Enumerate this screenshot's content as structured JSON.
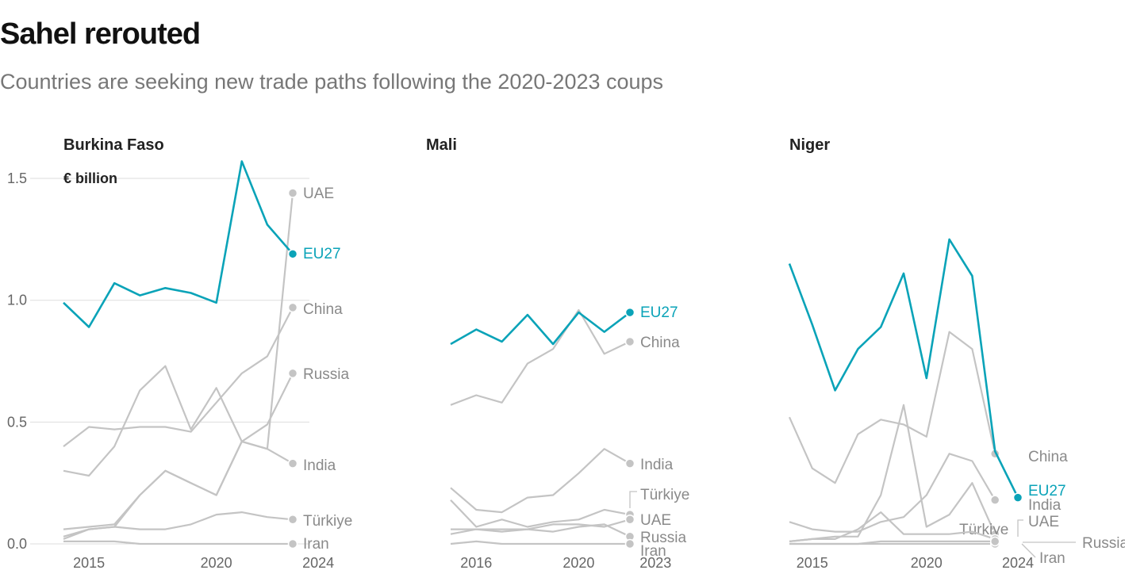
{
  "title": "Sahel rerouted",
  "subtitle": "Countries are seeking new trade paths following the 2020-2023 coups",
  "colors": {
    "highlight": "#0aa3b8",
    "other": "#c4c4c4",
    "grid": "#dddddd"
  },
  "chart_data": [
    {
      "type": "line",
      "title": "Burkina Faso",
      "unit": "€ billion",
      "x": [
        2014,
        2015,
        2016,
        2017,
        2018,
        2019,
        2020,
        2021,
        2022,
        2023,
        2024
      ],
      "ylim": [
        0,
        1.5
      ],
      "yticks": [
        0.0,
        0.5,
        1.0,
        1.5
      ],
      "ytick_labels": [
        "0.0",
        "0.5",
        "1.0",
        "1.5"
      ],
      "xticks": [
        2015,
        2020,
        2024
      ],
      "xtick_labels": [
        "2015",
        "2020",
        "2024"
      ],
      "series": [
        {
          "name": "EU27",
          "highlight": true,
          "values": [
            0.99,
            0.89,
            1.07,
            1.02,
            1.05,
            1.03,
            0.99,
            1.57,
            1.31,
            1.19,
            null
          ]
        },
        {
          "name": "UAE",
          "values": [
            0.02,
            0.06,
            0.07,
            0.2,
            0.3,
            0.25,
            0.2,
            0.42,
            0.39,
            1.44,
            null
          ]
        },
        {
          "name": "China",
          "values": [
            0.4,
            0.48,
            0.47,
            0.48,
            0.48,
            0.46,
            0.58,
            0.7,
            0.77,
            0.97,
            null
          ]
        },
        {
          "name": "Russia",
          "values": [
            0.06,
            0.07,
            0.08,
            0.2,
            0.3,
            0.25,
            0.2,
            0.42,
            0.49,
            0.7,
            null
          ]
        },
        {
          "name": "India",
          "values": [
            0.3,
            0.28,
            0.4,
            0.63,
            0.73,
            0.47,
            0.64,
            0.42,
            0.39,
            0.33,
            null
          ]
        },
        {
          "name": "Türkiye",
          "values": [
            0.03,
            0.06,
            0.07,
            0.06,
            0.06,
            0.08,
            0.12,
            0.13,
            0.11,
            0.1,
            null
          ]
        },
        {
          "name": "Iran",
          "values": [
            0.01,
            0.01,
            0.01,
            0.0,
            0.0,
            0.0,
            0.0,
            0.0,
            0.0,
            0.0,
            null
          ]
        }
      ]
    },
    {
      "type": "line",
      "title": "Mali",
      "x": [
        2015,
        2016,
        2017,
        2018,
        2019,
        2020,
        2021,
        2022,
        2023
      ],
      "ylim": [
        0,
        1.5
      ],
      "xticks": [
        2016,
        2020,
        2023
      ],
      "xtick_labels": [
        "2016",
        "2020",
        "2023"
      ],
      "series": [
        {
          "name": "EU27",
          "highlight": true,
          "values": [
            0.82,
            0.88,
            0.83,
            0.94,
            0.82,
            0.95,
            0.87,
            0.95,
            null
          ]
        },
        {
          "name": "China",
          "values": [
            0.57,
            0.61,
            0.58,
            0.74,
            0.8,
            0.96,
            0.78,
            0.83,
            null
          ]
        },
        {
          "name": "India",
          "values": [
            0.23,
            0.14,
            0.13,
            0.19,
            0.2,
            0.29,
            0.39,
            0.33,
            null
          ]
        },
        {
          "name": "Türkiye",
          "values": [
            0.18,
            0.07,
            0.1,
            0.07,
            0.09,
            0.1,
            0.14,
            0.12,
            null
          ]
        },
        {
          "name": "UAE",
          "values": [
            0.06,
            0.06,
            0.06,
            0.06,
            0.08,
            0.08,
            0.07,
            0.1,
            null
          ]
        },
        {
          "name": "Russia",
          "values": [
            0.04,
            0.06,
            0.05,
            0.06,
            0.05,
            0.07,
            0.08,
            0.03,
            null
          ]
        },
        {
          "name": "Iran",
          "values": [
            0.0,
            0.01,
            0.0,
            0.0,
            0.0,
            0.0,
            0.0,
            0.0,
            null
          ]
        }
      ]
    },
    {
      "type": "line",
      "title": "Niger",
      "x": [
        2014,
        2015,
        2016,
        2017,
        2018,
        2019,
        2020,
        2021,
        2022,
        2023,
        2024
      ],
      "ylim": [
        0,
        1.5
      ],
      "xticks": [
        2015,
        2020,
        2024
      ],
      "xtick_labels": [
        "2015",
        "2020",
        "2024"
      ],
      "series": [
        {
          "name": "EU27",
          "highlight": true,
          "values": [
            1.15,
            0.9,
            0.63,
            0.8,
            0.89,
            1.11,
            0.68,
            1.25,
            1.1,
            0.38,
            0.19
          ]
        },
        {
          "name": "China",
          "values": [
            0.52,
            0.31,
            0.25,
            0.45,
            0.51,
            0.49,
            0.44,
            0.87,
            0.8,
            0.37,
            null
          ]
        },
        {
          "name": "India",
          "values": [
            0.09,
            0.06,
            0.05,
            0.05,
            0.09,
            0.11,
            0.2,
            0.37,
            0.34,
            0.18,
            null
          ]
        },
        {
          "name": "Türkiye",
          "values": [
            0.01,
            0.02,
            0.03,
            0.03,
            0.2,
            0.57,
            0.07,
            0.12,
            0.25,
            0.04,
            null
          ]
        },
        {
          "name": "UAE",
          "values": [
            0.01,
            0.02,
            0.02,
            0.06,
            0.13,
            0.04,
            0.04,
            0.04,
            0.05,
            0.02,
            null
          ]
        },
        {
          "name": "Russia",
          "values": [
            0.0,
            0.0,
            0.0,
            0.0,
            0.0,
            0.0,
            0.0,
            0.0,
            0.0,
            0.0,
            null
          ]
        },
        {
          "name": "Iran",
          "values": [
            0.0,
            0.0,
            0.0,
            0.0,
            0.01,
            0.01,
            0.01,
            0.01,
            0.01,
            0.01,
            null
          ]
        }
      ]
    }
  ]
}
